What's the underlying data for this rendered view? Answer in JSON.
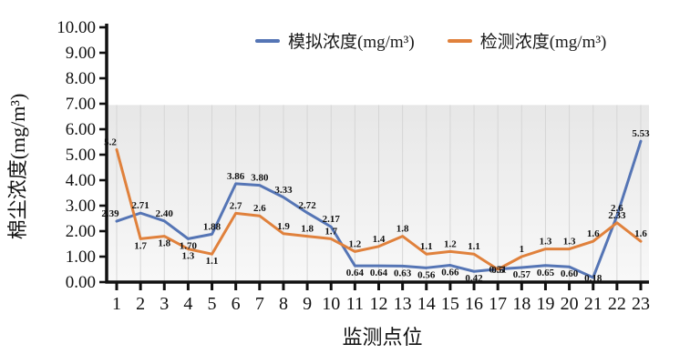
{
  "chart_data": {
    "type": "line",
    "title": "",
    "xlabel": "监测点位",
    "ylabel": "棉尘浓度(mg/m³)",
    "x": [
      1,
      2,
      3,
      4,
      5,
      6,
      7,
      8,
      9,
      10,
      11,
      12,
      13,
      14,
      15,
      16,
      17,
      18,
      19,
      20,
      21,
      22,
      23
    ],
    "ylim": [
      0,
      10
    ],
    "ytick_step": 1,
    "ytick_format": "0.00",
    "legend_position": "top",
    "grid": "vertical droplines at each x; light gray shaded band below y=7",
    "series": [
      {
        "name": "模拟浓度(mg/m³)",
        "color": "#5575b5",
        "values": [
          2.39,
          2.71,
          2.4,
          1.7,
          1.88,
          3.86,
          3.8,
          3.33,
          2.72,
          2.17,
          0.64,
          0.64,
          0.63,
          0.56,
          0.66,
          0.42,
          0.51,
          0.57,
          0.65,
          0.6,
          0.18,
          2.6,
          5.53
        ],
        "labels": [
          "2.39",
          "2.71",
          "2.40",
          "1.70",
          "1.88",
          "3.86",
          "3.80",
          "3.33",
          "2.72",
          "2.17",
          "0.64",
          "0.64",
          "0.63",
          "0.56",
          "0.66",
          "0.42",
          "0.51",
          "0.57",
          "0.65",
          "0.60",
          "0.18",
          "2.6",
          "5.53"
        ],
        "label_side": [
          "above",
          "above",
          "above",
          "below",
          "above",
          "above",
          "above",
          "above",
          "above",
          "above",
          "below",
          "below",
          "below",
          "below",
          "below",
          "below",
          "mid",
          "below",
          "below",
          "below",
          "mid",
          "above",
          "above"
        ]
      },
      {
        "name": "检测浓度(mg/m³)",
        "color": "#e0813c",
        "values": [
          5.2,
          1.7,
          1.8,
          1.3,
          1.1,
          2.7,
          2.6,
          1.9,
          1.8,
          1.7,
          1.2,
          1.4,
          1.8,
          1.1,
          1.2,
          1.1,
          0.5,
          1,
          1.3,
          1.3,
          1.6,
          2.33,
          1.6
        ],
        "labels": [
          "5.2",
          "1.7",
          "1.8",
          "1.3",
          "1.1",
          "2.7",
          "2.6",
          "1.9",
          "1.8",
          "1.7",
          "1.2",
          "1.4",
          "1.8",
          "1.1",
          "1.2",
          "1.1",
          "0.5",
          "1",
          "1.3",
          "1.3",
          "1.6",
          "2.33",
          "1.6"
        ],
        "label_side": [
          "above",
          "below",
          "below",
          "below",
          "below",
          "above",
          "above",
          "above",
          "above",
          "above",
          "above",
          "above",
          "above",
          "above",
          "above",
          "above",
          "mid",
          "above",
          "above",
          "above",
          "above",
          "above",
          "above"
        ]
      }
    ]
  }
}
